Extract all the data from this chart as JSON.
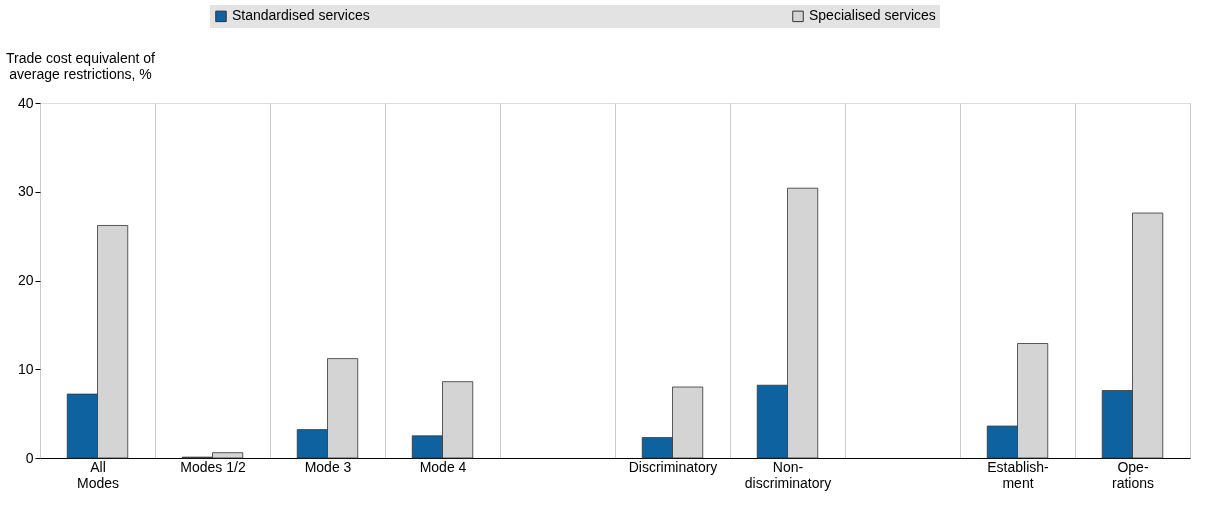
{
  "chart_data": {
    "type": "bar",
    "ylabel": "Trade cost equivalent of\naverage restrictions, %",
    "categories": [
      "All\nModes",
      "Modes 1/2",
      "Mode 3",
      "Mode 4",
      null,
      "Discriminatory",
      "Non-\ndiscriminatory",
      null,
      "Establish-\nment",
      "Ope-\nrations"
    ],
    "series": [
      {
        "name": "Standardised services",
        "color": "#0e62a0",
        "values": [
          7.2,
          0.1,
          3.2,
          2.5,
          null,
          2.3,
          8.2,
          null,
          3.6,
          7.6
        ]
      },
      {
        "name": "Specialised services",
        "color": "#d4d4d4",
        "values": [
          26.2,
          0.6,
          11.2,
          8.6,
          null,
          8.0,
          30.4,
          null,
          12.9,
          27.6
        ]
      }
    ],
    "ylim": [
      0,
      40
    ],
    "yticks": [
      0,
      10,
      20,
      30,
      40
    ],
    "grid": "x",
    "legend": "top"
  }
}
